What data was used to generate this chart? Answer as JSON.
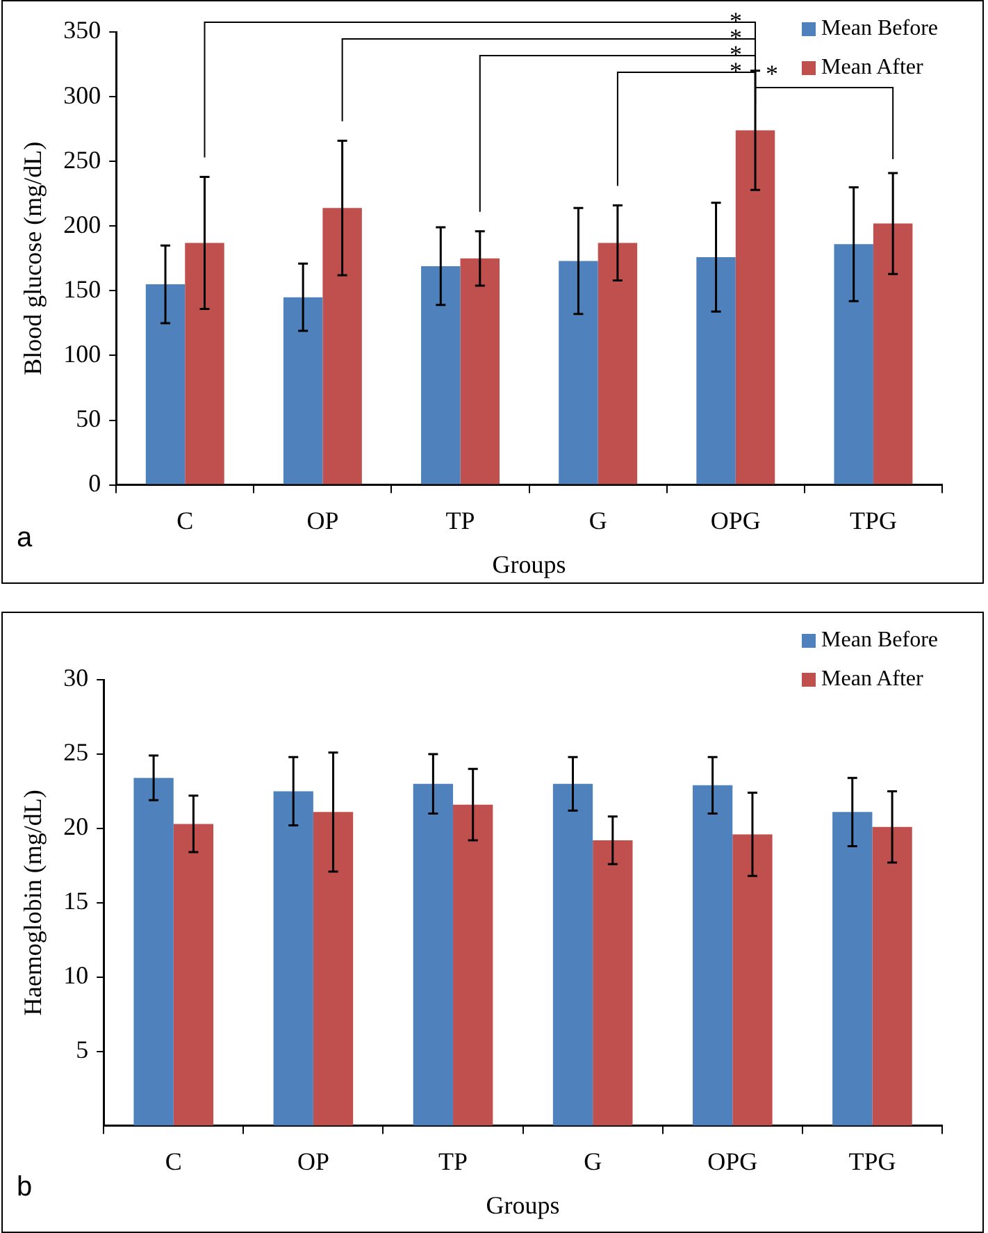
{
  "chart_data": [
    {
      "type": "bar",
      "xlabel": "Groups",
      "ylabel": "Blood glucose (mg/dL)",
      "categories": [
        "C",
        "OP",
        "TP",
        "G",
        "OPG",
        "TPG"
      ],
      "series": [
        {
          "name": "Mean Before",
          "color": "#4f81bd",
          "values": [
            155,
            145,
            169,
            173,
            176,
            186
          ],
          "errors": [
            30,
            26,
            30,
            41,
            42,
            44
          ]
        },
        {
          "name": "Mean After",
          "color": "#c0504d",
          "values": [
            187,
            214,
            175,
            187,
            274,
            202
          ],
          "errors": [
            51,
            52,
            21,
            29,
            46,
            39
          ]
        }
      ],
      "ylim": [
        0,
        350
      ],
      "yticks": [
        0,
        50,
        100,
        150,
        200,
        250,
        300,
        350
      ],
      "grid": false,
      "legend": "top right",
      "annotations": [
        "*",
        "*",
        "*",
        "*",
        "*",
        "a"
      ]
    },
    {
      "type": "bar",
      "xlabel": "Groups",
      "ylabel": "Haemoglobin (mg/dL)",
      "categories": [
        "C",
        "OP",
        "TP",
        "G",
        "OPG",
        "TPG"
      ],
      "series": [
        {
          "name": "Mean Before",
          "color": "#4f81bd",
          "values": [
            23.4,
            22.5,
            23.0,
            23.0,
            22.9,
            21.1
          ],
          "errors": [
            1.5,
            2.3,
            2.0,
            1.8,
            1.9,
            2.3
          ]
        },
        {
          "name": "Mean After",
          "color": "#c0504d",
          "values": [
            20.3,
            21.1,
            21.6,
            19.2,
            19.6,
            20.1
          ],
          "errors": [
            1.9,
            4.0,
            2.4,
            1.6,
            2.8,
            2.4
          ]
        }
      ],
      "ylim": [
        0,
        30
      ],
      "yticks": [
        5,
        10,
        15,
        20,
        25,
        30
      ],
      "grid": false,
      "legend": "top right",
      "annotations": [
        "b"
      ]
    }
  ]
}
